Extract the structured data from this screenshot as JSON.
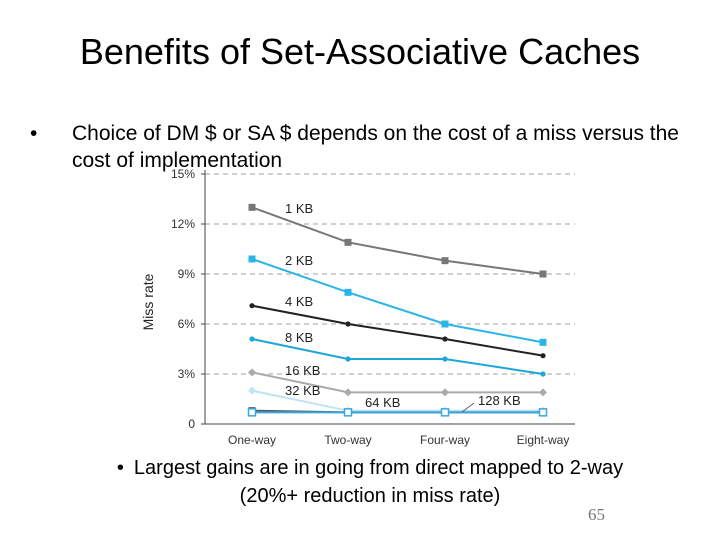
{
  "slide": {
    "title": "Benefits of Set-Associative Caches",
    "bullet_main": "Choice of DM $ or SA $ depends on the cost of a miss versus the cost of implementation",
    "bullet_sub_line1": "Largest gains are in going from direct mapped to 2-way",
    "bullet_sub_line2": "(20%+ reduction in miss rate)",
    "bullet_symbol": "•",
    "page_number": "65"
  },
  "chart_data": {
    "type": "line",
    "title": "",
    "xlabel": "",
    "ylabel": "Miss rate",
    "categories": [
      "One-way",
      "Two-way",
      "Four-way",
      "Eight-way"
    ],
    "ylim": [
      0,
      15
    ],
    "yticks": [
      0,
      3,
      6,
      9,
      12,
      15
    ],
    "ytick_labels": [
      "0",
      "3%",
      "6%",
      "9%",
      "12%",
      "15%"
    ],
    "series": [
      {
        "name": "1 KB",
        "values": [
          13,
          10.9,
          9.8,
          9.0
        ],
        "color": "#777777",
        "marker": "square"
      },
      {
        "name": "2 KB",
        "values": [
          9.9,
          7.9,
          6.0,
          4.9
        ],
        "color": "#29b6e6",
        "marker": "square"
      },
      {
        "name": "4 KB",
        "values": [
          7.1,
          6.0,
          5.1,
          4.1
        ],
        "color": "#222222",
        "marker": "circle"
      },
      {
        "name": "8 KB",
        "values": [
          5.1,
          3.9,
          3.9,
          3.0
        ],
        "color": "#1ea6d8",
        "marker": "circle"
      },
      {
        "name": "16 KB",
        "values": [
          3.1,
          1.9,
          1.9,
          1.9
        ],
        "color": "#aaaaaa",
        "marker": "diamond"
      },
      {
        "name": "32 KB",
        "values": [
          2.0,
          0.8,
          0.8,
          0.8
        ],
        "color": "#bfe3f3",
        "marker": "diamond"
      },
      {
        "name": "64 KB",
        "values": [
          0.8,
          0.7,
          0.7,
          0.7
        ],
        "color": "#555555",
        "marker": "square"
      },
      {
        "name": "128 KB",
        "values": [
          0.7,
          0.7,
          0.7,
          0.7
        ],
        "color": "#3aa7e0",
        "marker": "square-open"
      }
    ]
  }
}
